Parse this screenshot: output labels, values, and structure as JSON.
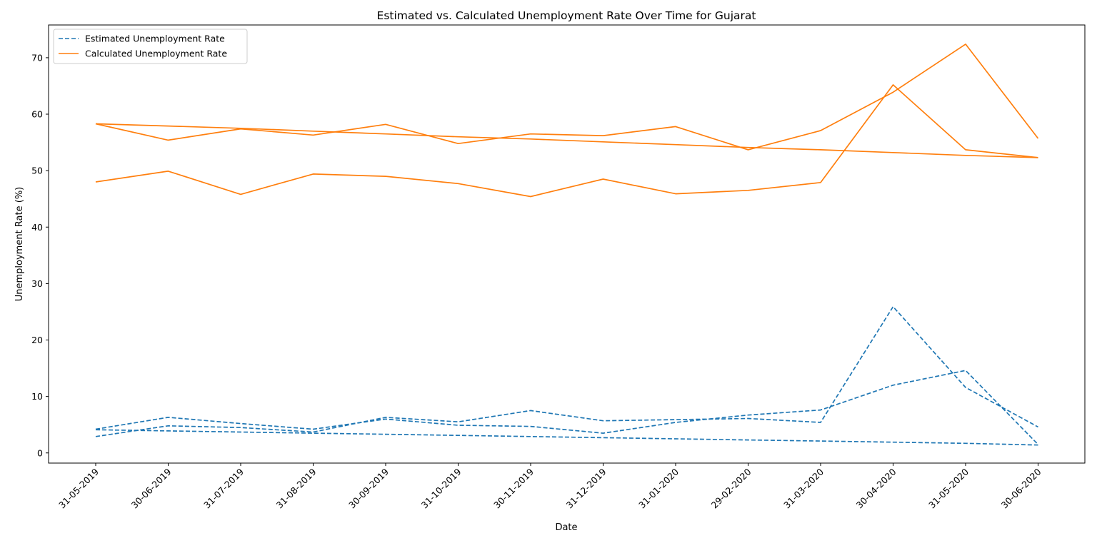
{
  "chart_data": {
    "type": "line",
    "title": "Estimated vs. Calculated Unemployment Rate Over Time for Gujarat",
    "xlabel": "Date",
    "ylabel": "Unemployment Rate (%)",
    "categories": [
      "31-05-2019",
      "30-06-2019",
      "31-07-2019",
      "31-08-2019",
      "30-09-2019",
      "31-10-2019",
      "30-11-2019",
      "31-12-2019",
      "31-01-2020",
      "29-02-2020",
      "31-03-2020",
      "30-04-2020",
      "31-05-2020",
      "30-06-2020"
    ],
    "ylim": [
      -1.8,
      75.8
    ],
    "yticks": [
      0,
      10,
      20,
      30,
      40,
      50,
      60,
      70
    ],
    "grid": false,
    "legend_position": "top-left",
    "series": [
      {
        "name": "Estimated Unemployment Rate",
        "color": "#1f77b4",
        "dash": "dashed",
        "segments": [
          [
            2.9,
            4.8,
            4.5,
            3.7,
            6.3,
            5.5,
            7.5,
            5.7,
            5.9,
            6.1,
            5.4,
            25.9,
            11.6,
            4.6
          ],
          [
            4.2,
            6.3,
            5.2,
            4.2,
            6.0,
            4.9,
            4.7,
            3.5,
            5.4,
            6.7,
            7.6,
            12.0,
            14.6,
            1.5
          ],
          [
            4.1,
            3.9,
            3.7,
            3.5,
            3.3,
            3.1,
            2.9,
            2.7,
            2.5,
            2.3,
            2.1,
            1.9,
            1.7,
            1.4
          ]
        ]
      },
      {
        "name": "Calculated Unemployment Rate",
        "color": "#ff7f0e",
        "dash": "solid",
        "segments": [
          [
            48.0,
            49.9,
            45.8,
            49.4,
            49.0,
            47.7,
            45.4,
            48.5,
            45.9,
            46.5,
            47.9,
            65.2,
            53.7,
            52.3
          ],
          [
            58.3,
            55.4,
            57.4,
            56.3,
            58.2,
            54.8,
            56.5,
            56.2,
            57.8,
            53.7,
            57.1,
            63.9,
            72.4,
            55.7
          ],
          [
            58.3,
            57.9,
            57.5,
            57.0,
            56.5,
            56.0,
            55.6,
            55.1,
            54.6,
            54.1,
            53.7,
            53.2,
            52.7,
            52.3
          ]
        ]
      }
    ]
  }
}
